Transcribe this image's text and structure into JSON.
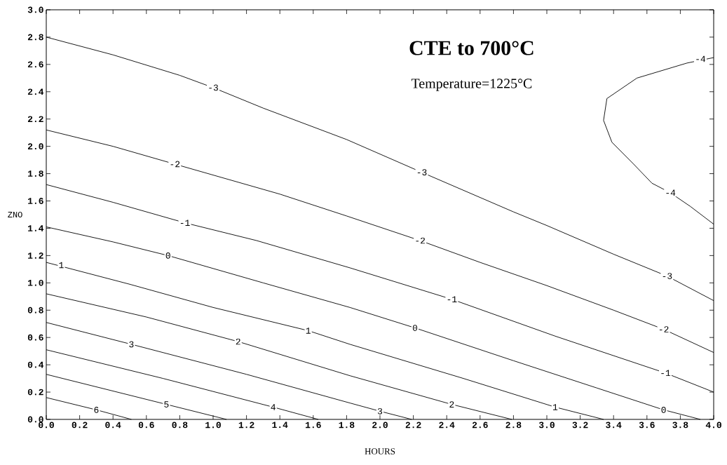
{
  "chart_data": {
    "type": "line",
    "title": "CTE to 700°C",
    "subtitle": "Temperature=1225°C",
    "xlabel": "HOURS",
    "ylabel": "ZNO",
    "xlim": [
      0,
      4
    ],
    "ylim": [
      0,
      3
    ],
    "xticks": [
      {
        "value": 0,
        "label": "0.0"
      },
      0.2,
      0.4,
      0.6,
      0.8,
      {
        "value": 1,
        "label": "1.0"
      },
      1.2,
      1.4,
      1.6,
      1.8,
      {
        "value": 2,
        "label": "2.0"
      },
      2.2,
      2.4,
      2.6,
      2.8,
      {
        "value": 3,
        "label": "3.0"
      },
      3.2,
      3.4,
      3.6,
      3.8,
      {
        "value": 4,
        "label": "4.0"
      }
    ],
    "yticks": [
      {
        "value": 0,
        "label": "0.0"
      },
      0.2,
      0.4,
      0.6,
      0.8,
      {
        "value": 1,
        "label": "1.0"
      },
      1.2,
      1.4,
      1.6,
      1.8,
      {
        "value": 2,
        "label": "2.0"
      },
      2.2,
      2.4,
      2.6,
      2.8,
      {
        "value": 3,
        "label": "3.0"
      }
    ],
    "grid": false,
    "marker": "none",
    "line_style": "solid",
    "series": [
      {
        "color": "#000000",
        "x": [
          4.0,
          3.84,
          3.54,
          3.36,
          3.34,
          3.39,
          3.52,
          3.63,
          3.74,
          3.86,
          4.0
        ],
        "values": [
          2.65,
          2.61,
          2.5,
          2.35,
          2.19,
          2.03,
          1.87,
          1.73,
          1.66,
          1.56,
          1.43
        ]
      },
      {
        "color": "#000000",
        "x": [
          0,
          0.4,
          0.8,
          1.0,
          1.3,
          1.8,
          2.25,
          2.8,
          3.0,
          3.4,
          3.72,
          4.0
        ],
        "values": [
          2.8,
          2.67,
          2.52,
          2.43,
          2.28,
          2.05,
          1.81,
          1.52,
          1.42,
          1.21,
          1.05,
          0.87
        ]
      },
      {
        "color": "#000000",
        "x": [
          0,
          0.4,
          0.77,
          1.4,
          1.8,
          2.24,
          2.6,
          3.0,
          3.4,
          3.7,
          4.0
        ],
        "values": [
          2.12,
          2.0,
          1.87,
          1.65,
          1.49,
          1.31,
          1.15,
          0.98,
          0.8,
          0.66,
          0.49
        ]
      },
      {
        "color": "#000000",
        "x": [
          0,
          0.4,
          0.83,
          1.26,
          1.82,
          2.43,
          3.05,
          3.71,
          4.0
        ],
        "values": [
          1.72,
          1.59,
          1.44,
          1.31,
          1.11,
          0.88,
          0.61,
          0.34,
          0.2
        ]
      },
      {
        "color": "#000000",
        "x": [
          0,
          0.4,
          0.73,
          1.3,
          1.82,
          2.21,
          2.8,
          3.3,
          3.7,
          3.92
        ],
        "values": [
          1.41,
          1.3,
          1.2,
          1.0,
          0.82,
          0.67,
          0.43,
          0.23,
          0.07,
          0
        ]
      },
      {
        "color": "#000000",
        "x": [
          0,
          0.5,
          1.0,
          1.57,
          1.82,
          2.5,
          3.05,
          3.34
        ],
        "values": [
          1.15,
          0.99,
          0.82,
          0.65,
          0.55,
          0.3,
          0.09,
          0
        ]
      },
      {
        "color": "#000000",
        "x": [
          0,
          0.6,
          1.15,
          1.82,
          2.43,
          2.79
        ],
        "values": [
          0.92,
          0.75,
          0.57,
          0.32,
          0.11,
          0
        ]
      },
      {
        "color": "#000000",
        "x": [
          0,
          0.51,
          1.2,
          1.82,
          2.0,
          2.19
        ],
        "values": [
          0.71,
          0.55,
          0.33,
          0.12,
          0.06,
          0
        ]
      },
      {
        "color": "#000000",
        "x": [
          0,
          0.7,
          1.36,
          1.63
        ],
        "values": [
          0.51,
          0.3,
          0.09,
          0
        ]
      },
      {
        "color": "#000000",
        "x": [
          0,
          0.72,
          1.08
        ],
        "values": [
          0.33,
          0.11,
          0
        ]
      },
      {
        "color": "#000000",
        "x": [
          0,
          0.3,
          0.51
        ],
        "values": [
          0.16,
          0.07,
          0
        ]
      }
    ],
    "annotations": [
      {
        "text": "-4",
        "x": 3.92,
        "y": 2.64
      },
      {
        "text": "-4",
        "x": 3.74,
        "y": 1.66
      },
      {
        "text": "-3",
        "x": 1.0,
        "y": 2.43
      },
      {
        "text": "-3",
        "x": 2.25,
        "y": 1.81
      },
      {
        "text": "-3",
        "x": 3.72,
        "y": 1.05
      },
      {
        "text": "-2",
        "x": 0.77,
        "y": 1.87
      },
      {
        "text": "-2",
        "x": 2.24,
        "y": 1.31
      },
      {
        "text": "-2",
        "x": 3.7,
        "y": 0.66
      },
      {
        "text": "-1",
        "x": 0.83,
        "y": 1.44
      },
      {
        "text": "-1",
        "x": 2.43,
        "y": 0.88
      },
      {
        "text": "-1",
        "x": 3.71,
        "y": 0.34
      },
      {
        "text": "0",
        "x": 0.73,
        "y": 1.2
      },
      {
        "text": "0",
        "x": 2.21,
        "y": 0.67
      },
      {
        "text": "0",
        "x": 3.7,
        "y": 0.07
      },
      {
        "text": "1",
        "x": 0.09,
        "y": 1.13
      },
      {
        "text": "1",
        "x": 1.57,
        "y": 0.65
      },
      {
        "text": "1",
        "x": 3.05,
        "y": 0.09
      },
      {
        "text": "2",
        "x": 1.15,
        "y": 0.57
      },
      {
        "text": "2",
        "x": 2.43,
        "y": 0.11
      },
      {
        "text": "3",
        "x": 0.51,
        "y": 0.55
      },
      {
        "text": "3",
        "x": 2.0,
        "y": 0.06
      },
      {
        "text": "4",
        "x": 1.36,
        "y": 0.09
      },
      {
        "text": "5",
        "x": 0.72,
        "y": 0.11
      },
      {
        "text": "6",
        "x": 0.3,
        "y": 0.07
      }
    ]
  }
}
